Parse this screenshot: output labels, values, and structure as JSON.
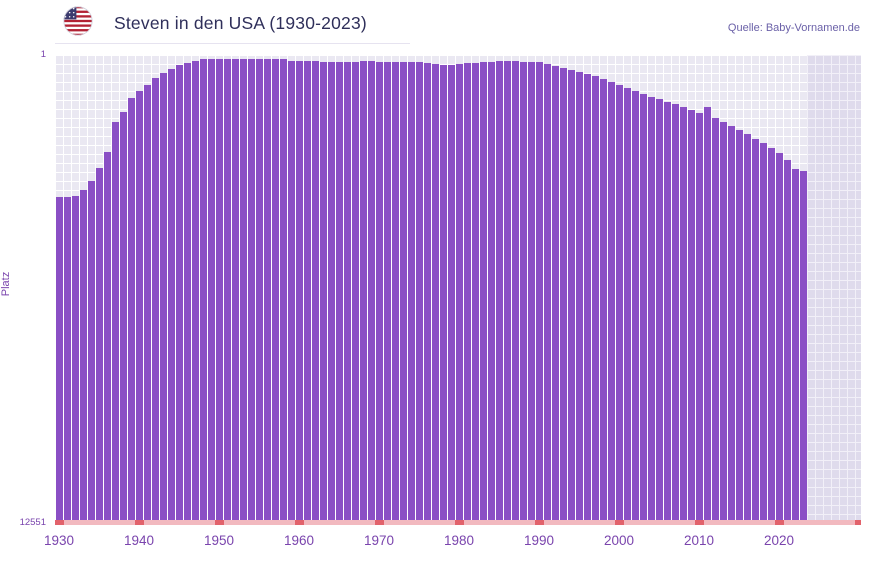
{
  "header": {
    "title": "Steven in den USA (1930-2023)",
    "source": "Quelle: Baby-Vornamen.de"
  },
  "chart_data": {
    "type": "bar",
    "title": "Steven in den USA (1930-2023)",
    "xlabel": "",
    "ylabel": "Platz",
    "year_start": 1930,
    "year_end": 2023,
    "y_axis": {
      "top_tick_label": "1",
      "bottom_tick_label": "12551",
      "min_value": 1,
      "max_value": 12551,
      "inverted": true,
      "scale_estimate": "sqrt"
    },
    "x_ticks": [
      1930,
      1940,
      1950,
      1960,
      1970,
      1980,
      1990,
      2000,
      2010,
      2020
    ],
    "baseline_tick_years": [
      1930,
      1940,
      1950,
      1960,
      1970,
      1980,
      1990,
      2000,
      2010,
      2020,
      2030
    ],
    "grid": true,
    "legend": "none",
    "series": [
      {
        "name": "Platz",
        "values": [
          1146,
          1146,
          1130,
          1036,
          901,
          725,
          534,
          256,
          185,
          105,
          74,
          51,
          30,
          18,
          11,
          6,
          4,
          2,
          1,
          1,
          1,
          1,
          1,
          1,
          1,
          1,
          1,
          1,
          1,
          2,
          2,
          2,
          2,
          3,
          3,
          3,
          3,
          3,
          2,
          2,
          3,
          3,
          3,
          3,
          3,
          3,
          4,
          5,
          6,
          6,
          5,
          4,
          4,
          3,
          3,
          2,
          2,
          2,
          3,
          3,
          3,
          5,
          7,
          10,
          13,
          16,
          21,
          25,
          33,
          41,
          51,
          62,
          74,
          87,
          100,
          110,
          125,
          137,
          154,
          172,
          191,
          154,
          225,
          256,
          287,
          320,
          355,
          401,
          440,
          492,
          546,
          627,
          739,
          765
        ]
      }
    ]
  },
  "colors": {
    "bar": "#8a4fc5",
    "title_text": "#2f2f5a",
    "title_rule": "#e6e3f0",
    "source_text": "#6b61a8",
    "axis_text": "#7a44ad",
    "plot_background": "#eae8f2",
    "grid": "#ffffff",
    "future_band": "rgba(126,108,186,0.10)",
    "baseline": "#f2b9bf",
    "baseline_tick": "#e2626b"
  }
}
